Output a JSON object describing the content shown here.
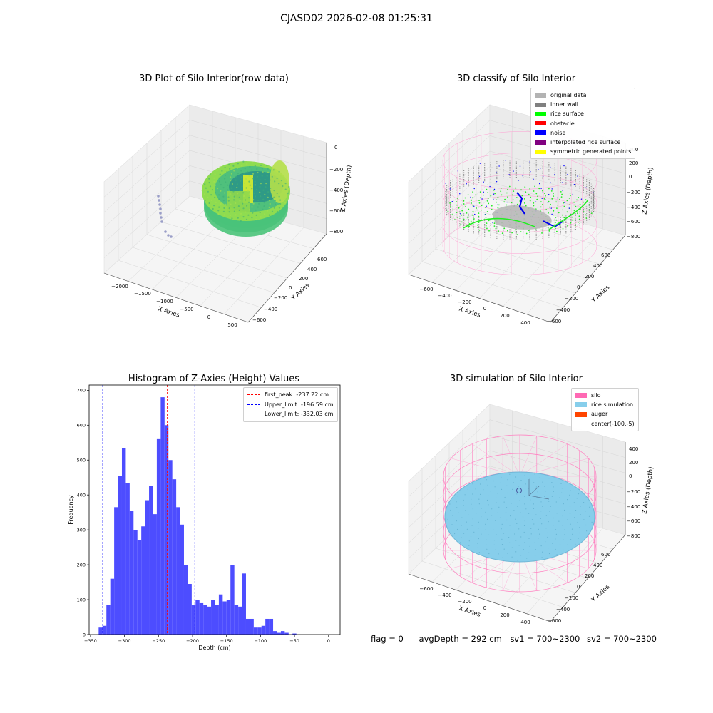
{
  "figure": {
    "suptitle": "CJASD02 2026-02-08 01:25:31",
    "colors": {
      "original_data": "#b3b3b3",
      "inner_wall": "#808080",
      "rice_surface": "#00ff00",
      "obstacle": "#ff0000",
      "noise": "#0000ff",
      "interpolated": "#800080",
      "symmetric": "#ffff00",
      "silo": "#ff69b4",
      "rice_simulation": "#87ceeb",
      "auger": "#ff4500",
      "histogram_bar": "#4d4dff"
    }
  },
  "plot3d_raw": {
    "title": "3D Plot of Silo Interior(row data)",
    "xlabel": "X Axies",
    "ylabel": "Y Axies",
    "zlabel": "Z Axies (Depth)",
    "xticks": [
      "−2000",
      "−1500",
      "−1000",
      "−500",
      "0",
      "500"
    ],
    "yticks": [
      "600",
      "400",
      "200",
      "0",
      "−200",
      "−400",
      "−600"
    ],
    "zticks": [
      "0",
      "−200",
      "−400",
      "−600",
      "−800"
    ]
  },
  "plot3d_classify": {
    "title": "3D classify of Silo Interior",
    "xlabel": "X Axies",
    "ylabel": "Y Axies",
    "zlabel": "Z Axies (Depth)",
    "xticks": [
      "−600",
      "−400",
      "−200",
      "0",
      "200",
      "400"
    ],
    "yticks": [
      "600",
      "400",
      "200",
      "0",
      "−200",
      "−400",
      "−600"
    ],
    "zticks": [
      "400",
      "200",
      "0",
      "−200",
      "−400",
      "−600",
      "−800"
    ],
    "legend": [
      {
        "label": "original data",
        "color": "#b3b3b3"
      },
      {
        "label": "inner wall",
        "color": "#808080"
      },
      {
        "label": "rice surface",
        "color": "#00ff00"
      },
      {
        "label": "obstacle",
        "color": "#ff0000"
      },
      {
        "label": "noise",
        "color": "#0000ff"
      },
      {
        "label": "interpolated rice surface",
        "color": "#800080"
      },
      {
        "label": "symmetric generated points",
        "color": "#ffff00"
      }
    ]
  },
  "plot3d_sim": {
    "title": "3D simulation of Silo Interior",
    "xlabel": "X Axies",
    "ylabel": "Y Axies",
    "zlabel": "Z Axies (Depth)",
    "xticks": [
      "−600",
      "−400",
      "−200",
      "0",
      "200",
      "400"
    ],
    "yticks": [
      "600",
      "400",
      "200",
      "0",
      "−200",
      "−400",
      "−600"
    ],
    "zticks": [
      "400",
      "200",
      "0",
      "−200",
      "−400",
      "−600",
      "−800"
    ],
    "legend": [
      {
        "label": "silo",
        "color": "#ff69b4"
      },
      {
        "label": "rice simulation",
        "color": "#87ceeb"
      },
      {
        "label": "auger",
        "color": "#ff4500"
      },
      {
        "label": "center(-100,-5)",
        "color": ""
      }
    ]
  },
  "status": {
    "flag": "flag = 0",
    "avg_depth": "avgDepth = 292 cm",
    "sv1": "sv1 = 700~2300",
    "sv2": "sv2 = 700~2300"
  },
  "chart_data": {
    "type": "bar",
    "title": "Histogram of Z-Axies (Height) Values",
    "xlabel": "Depth (cm)",
    "ylabel": "Frequency",
    "xlim": [
      -352,
      17
    ],
    "ylim": [
      0,
      715
    ],
    "xticks": [
      -350,
      -300,
      -250,
      -200,
      -150,
      -100,
      -50,
      0
    ],
    "yticks": [
      0,
      100,
      200,
      300,
      400,
      500,
      600,
      700
    ],
    "bin_start": -338,
    "bin_width": 5.7,
    "values": [
      20,
      25,
      85,
      160,
      365,
      455,
      535,
      435,
      355,
      300,
      270,
      310,
      385,
      425,
      345,
      560,
      680,
      600,
      500,
      445,
      365,
      315,
      200,
      145,
      85,
      100,
      90,
      85,
      80,
      100,
      85,
      115,
      95,
      100,
      200,
      85,
      80,
      175,
      45,
      45,
      20,
      20,
      25,
      45,
      45,
      10,
      5,
      10,
      5,
      0,
      3
    ],
    "lines": [
      {
        "label": "first_peak: -237.22 cm",
        "x": -237.22,
        "color": "#ff0000"
      },
      {
        "label": "Upper_limit: -196.59 cm",
        "x": -196.59,
        "color": "#0000ff"
      },
      {
        "label": "Lower_limit: -332.03 cm",
        "x": -332.03,
        "color": "#0000ff"
      }
    ]
  }
}
